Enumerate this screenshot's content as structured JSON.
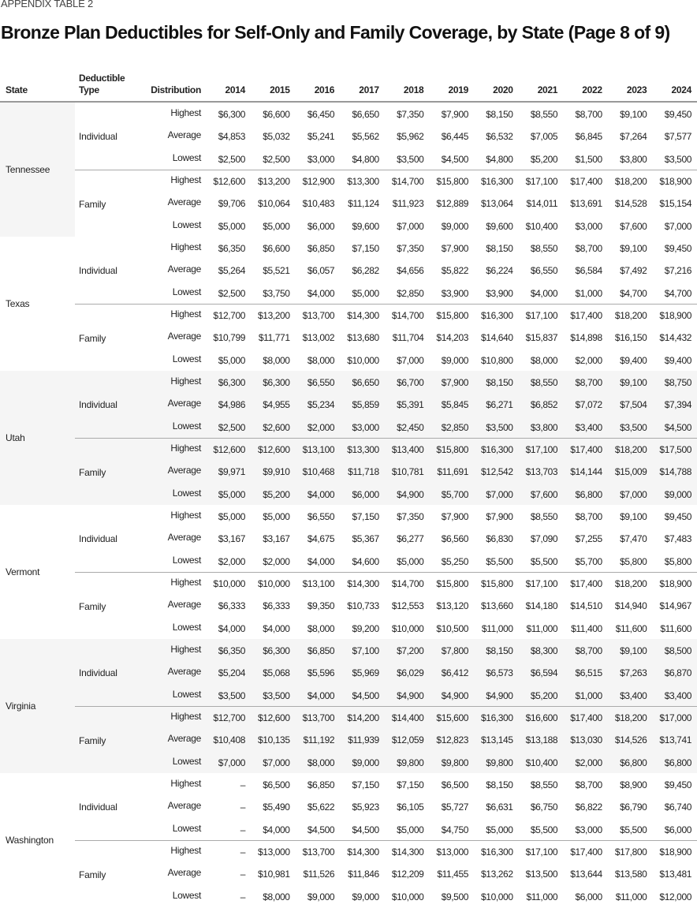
{
  "label": "APPENDIX TABLE 2",
  "title": "Bronze Plan Deductibles for Self-Only and Family Coverage, by State (Page 8 of 9)",
  "headers": {
    "state": "State",
    "type_line1": "Deductible",
    "type_line2": "Type",
    "distribution": "Distribution",
    "years": [
      "2014",
      "2015",
      "2016",
      "2017",
      "2018",
      "2019",
      "2020",
      "2021",
      "2022",
      "2023",
      "2024"
    ]
  },
  "distributions": [
    "Highest",
    "Average",
    "Lowest"
  ],
  "types": [
    "Individual",
    "Family"
  ],
  "states": [
    {
      "name": "Tennessee",
      "groups": [
        [
          [
            "$6,300",
            "$6,600",
            "$6,450",
            "$6,650",
            "$7,350",
            "$7,900",
            "$8,150",
            "$8,550",
            "$8,700",
            "$9,100",
            "$9,450"
          ],
          [
            "$4,853",
            "$5,032",
            "$5,241",
            "$5,562",
            "$5,962",
            "$6,445",
            "$6,532",
            "$7,005",
            "$6,845",
            "$7,264",
            "$7,577"
          ],
          [
            "$2,500",
            "$2,500",
            "$3,000",
            "$4,800",
            "$3,500",
            "$4,500",
            "$4,800",
            "$5,200",
            "$1,500",
            "$3,800",
            "$3,500"
          ]
        ],
        [
          [
            "$12,600",
            "$13,200",
            "$12,900",
            "$13,300",
            "$14,700",
            "$15,800",
            "$16,300",
            "$17,100",
            "$17,400",
            "$18,200",
            "$18,900"
          ],
          [
            "$9,706",
            "$10,064",
            "$10,483",
            "$11,124",
            "$11,923",
            "$12,889",
            "$13,064",
            "$14,011",
            "$13,691",
            "$14,528",
            "$15,154"
          ],
          [
            "$5,000",
            "$5,000",
            "$6,000",
            "$9,600",
            "$7,000",
            "$9,000",
            "$9,600",
            "$10,400",
            "$3,000",
            "$7,600",
            "$7,000"
          ]
        ]
      ]
    },
    {
      "name": "Texas",
      "groups": [
        [
          [
            "$6,350",
            "$6,600",
            "$6,850",
            "$7,150",
            "$7,350",
            "$7,900",
            "$8,150",
            "$8,550",
            "$8,700",
            "$9,100",
            "$9,450"
          ],
          [
            "$5,264",
            "$5,521",
            "$6,057",
            "$6,282",
            "$4,656",
            "$5,822",
            "$6,224",
            "$6,550",
            "$6,584",
            "$7,492",
            "$7,216"
          ],
          [
            "$2,500",
            "$3,750",
            "$4,000",
            "$5,000",
            "$2,850",
            "$3,900",
            "$3,900",
            "$4,000",
            "$1,000",
            "$4,700",
            "$4,700"
          ]
        ],
        [
          [
            "$12,700",
            "$13,200",
            "$13,700",
            "$14,300",
            "$14,700",
            "$15,800",
            "$16,300",
            "$17,100",
            "$17,400",
            "$18,200",
            "$18,900"
          ],
          [
            "$10,799",
            "$11,771",
            "$13,002",
            "$13,680",
            "$11,704",
            "$14,203",
            "$14,640",
            "$15,837",
            "$14,898",
            "$16,150",
            "$14,432"
          ],
          [
            "$5,000",
            "$8,000",
            "$8,000",
            "$10,000",
            "$7,000",
            "$9,000",
            "$10,800",
            "$8,000",
            "$2,000",
            "$9,400",
            "$9,400"
          ]
        ]
      ]
    },
    {
      "name": "Utah",
      "groups": [
        [
          [
            "$6,300",
            "$6,300",
            "$6,550",
            "$6,650",
            "$6,700",
            "$7,900",
            "$8,150",
            "$8,550",
            "$8,700",
            "$9,100",
            "$8,750"
          ],
          [
            "$4,986",
            "$4,955",
            "$5,234",
            "$5,859",
            "$5,391",
            "$5,845",
            "$6,271",
            "$6,852",
            "$7,072",
            "$7,504",
            "$7,394"
          ],
          [
            "$2,500",
            "$2,600",
            "$2,000",
            "$3,000",
            "$2,450",
            "$2,850",
            "$3,500",
            "$3,800",
            "$3,400",
            "$3,500",
            "$4,500"
          ]
        ],
        [
          [
            "$12,600",
            "$12,600",
            "$13,100",
            "$13,300",
            "$13,400",
            "$15,800",
            "$16,300",
            "$17,100",
            "$17,400",
            "$18,200",
            "$17,500"
          ],
          [
            "$9,971",
            "$9,910",
            "$10,468",
            "$11,718",
            "$10,781",
            "$11,691",
            "$12,542",
            "$13,703",
            "$14,144",
            "$15,009",
            "$14,788"
          ],
          [
            "$5,000",
            "$5,200",
            "$4,000",
            "$6,000",
            "$4,900",
            "$5,700",
            "$7,000",
            "$7,600",
            "$6,800",
            "$7,000",
            "$9,000"
          ]
        ]
      ]
    },
    {
      "name": "Vermont",
      "groups": [
        [
          [
            "$5,000",
            "$5,000",
            "$6,550",
            "$7,150",
            "$7,350",
            "$7,900",
            "$7,900",
            "$8,550",
            "$8,700",
            "$9,100",
            "$9,450"
          ],
          [
            "$3,167",
            "$3,167",
            "$4,675",
            "$5,367",
            "$6,277",
            "$6,560",
            "$6,830",
            "$7,090",
            "$7,255",
            "$7,470",
            "$7,483"
          ],
          [
            "$2,000",
            "$2,000",
            "$4,000",
            "$4,600",
            "$5,000",
            "$5,250",
            "$5,500",
            "$5,500",
            "$5,700",
            "$5,800",
            "$5,800"
          ]
        ],
        [
          [
            "$10,000",
            "$10,000",
            "$13,100",
            "$14,300",
            "$14,700",
            "$15,800",
            "$15,800",
            "$17,100",
            "$17,400",
            "$18,200",
            "$18,900"
          ],
          [
            "$6,333",
            "$6,333",
            "$9,350",
            "$10,733",
            "$12,553",
            "$13,120",
            "$13,660",
            "$14,180",
            "$14,510",
            "$14,940",
            "$14,967"
          ],
          [
            "$4,000",
            "$4,000",
            "$8,000",
            "$9,200",
            "$10,000",
            "$10,500",
            "$11,000",
            "$11,000",
            "$11,400",
            "$11,600",
            "$11,600"
          ]
        ]
      ]
    },
    {
      "name": "Virginia",
      "groups": [
        [
          [
            "$6,350",
            "$6,300",
            "$6,850",
            "$7,100",
            "$7,200",
            "$7,800",
            "$8,150",
            "$8,300",
            "$8,700",
            "$9,100",
            "$8,500"
          ],
          [
            "$5,204",
            "$5,068",
            "$5,596",
            "$5,969",
            "$6,029",
            "$6,412",
            "$6,573",
            "$6,594",
            "$6,515",
            "$7,263",
            "$6,870"
          ],
          [
            "$3,500",
            "$3,500",
            "$4,000",
            "$4,500",
            "$4,900",
            "$4,900",
            "$4,900",
            "$5,200",
            "$1,000",
            "$3,400",
            "$3,400"
          ]
        ],
        [
          [
            "$12,700",
            "$12,600",
            "$13,700",
            "$14,200",
            "$14,400",
            "$15,600",
            "$16,300",
            "$16,600",
            "$17,400",
            "$18,200",
            "$17,000"
          ],
          [
            "$10,408",
            "$10,135",
            "$11,192",
            "$11,939",
            "$12,059",
            "$12,823",
            "$13,145",
            "$13,188",
            "$13,030",
            "$14,526",
            "$13,741"
          ],
          [
            "$7,000",
            "$7,000",
            "$8,000",
            "$9,000",
            "$9,800",
            "$9,800",
            "$9,800",
            "$10,400",
            "$2,000",
            "$6,800",
            "$6,800"
          ]
        ]
      ]
    },
    {
      "name": "Washington",
      "groups": [
        [
          [
            "–",
            "$6,500",
            "$6,850",
            "$7,150",
            "$7,150",
            "$6,500",
            "$8,150",
            "$8,550",
            "$8,700",
            "$8,900",
            "$9,450"
          ],
          [
            "–",
            "$5,490",
            "$5,622",
            "$5,923",
            "$6,105",
            "$5,727",
            "$6,631",
            "$6,750",
            "$6,822",
            "$6,790",
            "$6,740"
          ],
          [
            "–",
            "$4,000",
            "$4,500",
            "$4,500",
            "$5,000",
            "$4,750",
            "$5,000",
            "$5,500",
            "$3,000",
            "$5,500",
            "$6,000"
          ]
        ],
        [
          [
            "–",
            "$13,000",
            "$13,700",
            "$14,300",
            "$14,300",
            "$13,000",
            "$16,300",
            "$17,100",
            "$17,400",
            "$17,800",
            "$18,900"
          ],
          [
            "–",
            "$10,981",
            "$11,526",
            "$11,846",
            "$12,209",
            "$11,455",
            "$13,262",
            "$13,500",
            "$13,644",
            "$13,580",
            "$13,481"
          ],
          [
            "–",
            "$8,000",
            "$9,000",
            "$9,000",
            "$10,000",
            "$9,500",
            "$10,000",
            "$11,000",
            "$6,000",
            "$11,000",
            "$12,000"
          ]
        ]
      ]
    }
  ]
}
